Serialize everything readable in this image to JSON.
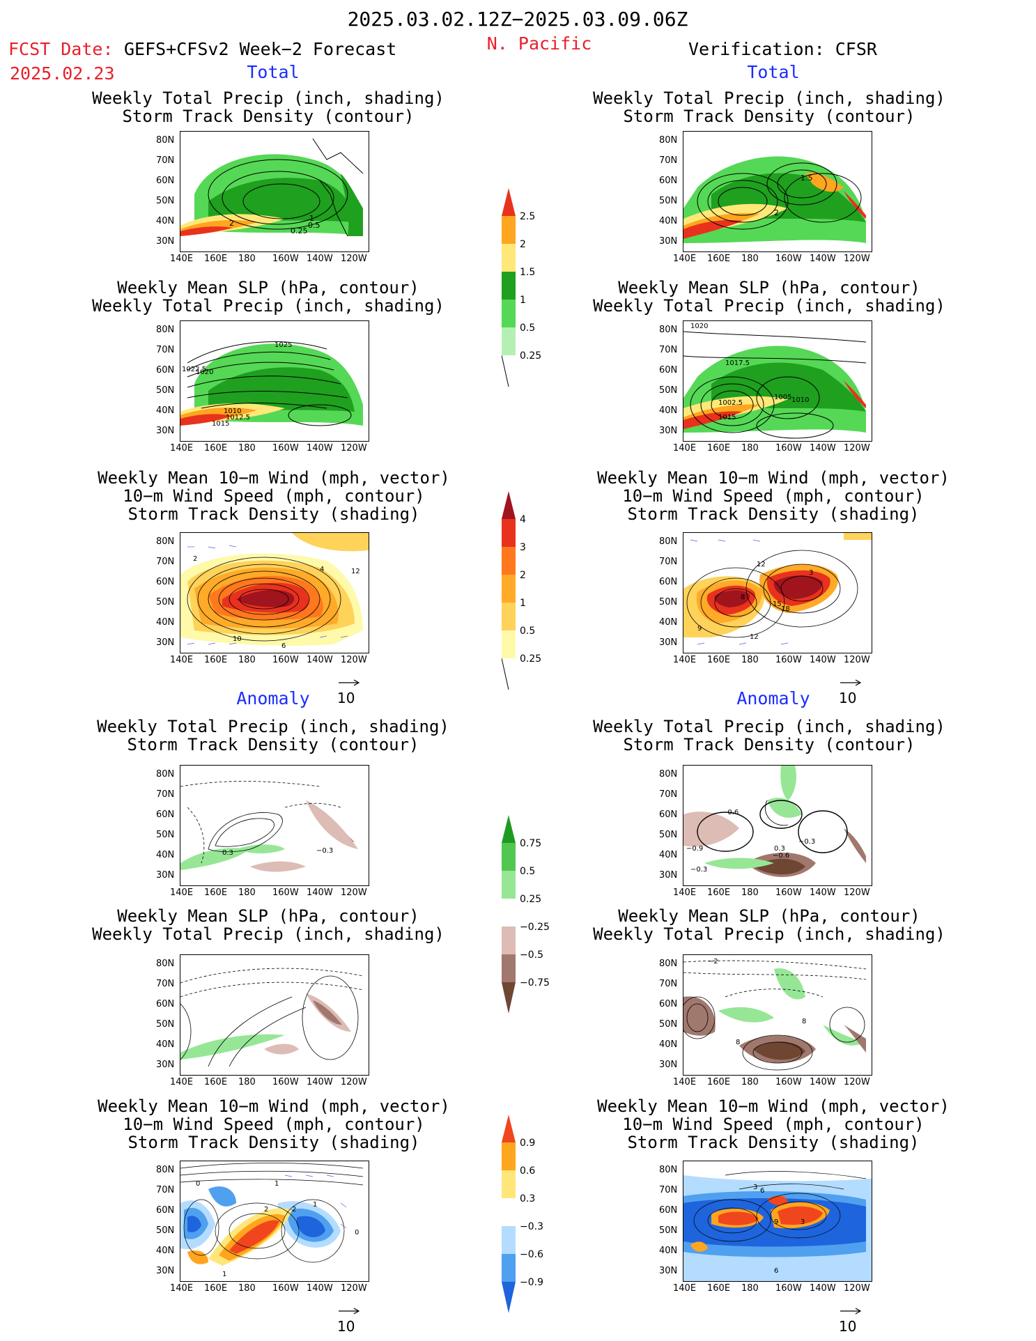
{
  "header": {
    "date_range": "2025.03.02.12Z−2025.03.09.06Z",
    "fcst_label": "FCST Date:",
    "fcst_model": "GEFS+CFSv2 Week−2 Forecast",
    "fcst_date": "2025.02.23",
    "region": "N. Pacific",
    "verification": "Verification: CFSR"
  },
  "sections": {
    "total": "Total",
    "anomaly": "Anomaly"
  },
  "panel_titles": {
    "precip_storm": [
      "Weekly Total Precip (inch, shading)",
      "Storm Track Density (contour)"
    ],
    "slp_precip": [
      "Weekly Mean SLP (hPa, contour)",
      "Weekly Total Precip (inch, shading)"
    ],
    "wind_storm": [
      "Weekly Mean 10−m Wind (mph, vector)",
      "10−m Wind Speed (mph, contour)",
      "Storm Track Density (shading)"
    ]
  },
  "axes": {
    "lat": [
      "80N",
      "70N",
      "60N",
      "50N",
      "40N",
      "30N"
    ],
    "lon": [
      "140E",
      "160E",
      "180",
      "160W",
      "140W",
      "120W"
    ]
  },
  "vector_ref": "10",
  "colorbars": {
    "precip_total": [
      "2.5",
      "2",
      "1.5",
      "1",
      "0.5",
      "0.25"
    ],
    "storm_total": [
      "4",
      "3",
      "2",
      "1",
      "0.5",
      "0.25"
    ],
    "precip_anom": [
      "0.75",
      "0.5",
      "0.25",
      "−0.25",
      "−0.5",
      "−0.75"
    ],
    "storm_anom": [
      "0.9",
      "0.6",
      "0.3",
      "−0.3",
      "−0.6",
      "−0.9"
    ]
  },
  "contour_labels": {
    "fc_total_precip": [
      "2",
      "1",
      "0.5",
      "0.25"
    ],
    "obs_total_precip": [
      "1.5",
      "2"
    ],
    "fc_total_slp": [
      "1025",
      "1022.5",
      "1020",
      "1010",
      "1012.5",
      "1015"
    ],
    "obs_total_slp": [
      "1020",
      "1017.5",
      "1002.5",
      "1005",
      "1010",
      "1015"
    ],
    "fc_total_wind": [
      "2",
      "4",
      "12",
      "10",
      "6"
    ],
    "obs_total_wind": [
      "12",
      "3",
      "8",
      "15",
      "18",
      "9",
      "12"
    ],
    "fc_anom_precip": [
      "0.3",
      "−0.3"
    ],
    "obs_anom_precip": [
      "−0.6",
      "−0.9",
      "0.3",
      "−0.3",
      "−0.6",
      "−0.3"
    ],
    "obs_anom_slp": [
      "−2",
      "8",
      "8"
    ],
    "fc_anom_wind": [
      "0",
      "1",
      "2",
      "2",
      "1",
      "0",
      "1"
    ],
    "obs_anom_wind": [
      "3",
      "6",
      "9",
      "3",
      "6"
    ]
  },
  "colors": {
    "precip": [
      "#b4f0b4",
      "#55d855",
      "#1fa01f",
      "#ffe878",
      "#ffa51f",
      "#e8321e"
    ],
    "storm": [
      "#fffaaa",
      "#ffd25a",
      "#ffaa28",
      "#ff781e",
      "#e8321e",
      "#a0141e"
    ],
    "precip_anom": [
      "#6e4632",
      "#a0786e",
      "#dcbcb4",
      "#ffffff",
      "#96e696",
      "#50c850",
      "#1e9b1e"
    ],
    "storm_anom": [
      "#1e64dc",
      "#50a0f0",
      "#b4dcff",
      "#ffffff",
      "#ffe678",
      "#ffa51e",
      "#f0461e"
    ]
  }
}
